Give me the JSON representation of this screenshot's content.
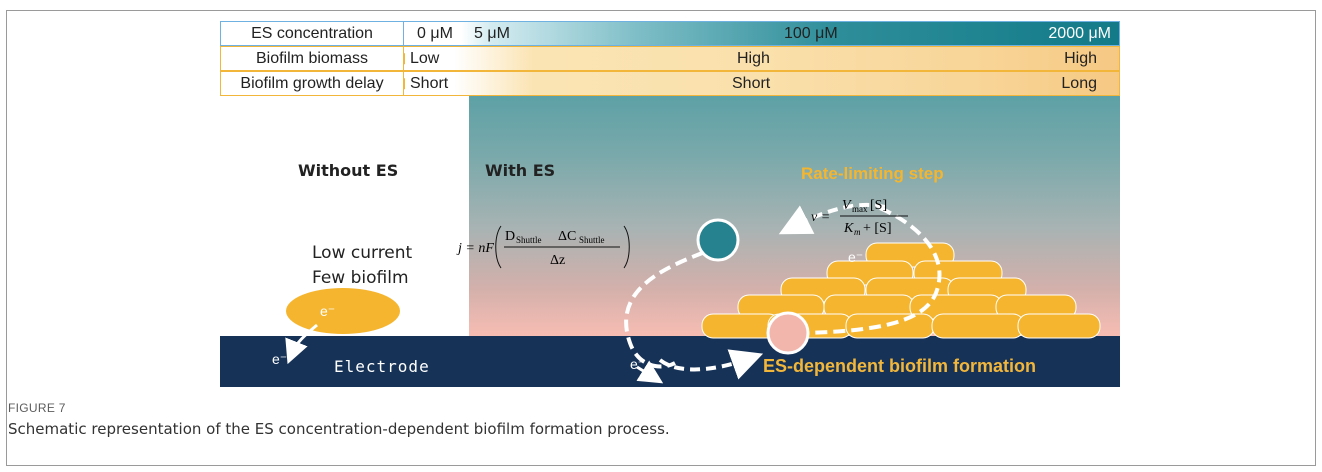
{
  "table": {
    "rows": [
      {
        "label": "ES concentration",
        "values": [
          "0 μM",
          "5 μM",
          "100 μM",
          "2000 μM"
        ]
      },
      {
        "label": "Biofilm biomass",
        "values": [
          "Low",
          "High",
          "High"
        ]
      },
      {
        "label": "Biofilm growth delay",
        "values": [
          "Short",
          "Short",
          "Long"
        ]
      }
    ]
  },
  "panels": {
    "without_es": "Without ES",
    "with_es": "With ES",
    "rate_limiting": "Rate-limiting step",
    "low_current": "Low current",
    "few_biofilm": "Few biofilm",
    "electrode": "Electrode",
    "es_formation": "ES-dependent biofilm formation",
    "electron": "e⁻"
  },
  "equations": {
    "flux": {
      "lhs": "j = nF",
      "D": "D",
      "D_sub": "Shuttle",
      "delta_c": "ΔC",
      "c_sub": "Shuttle",
      "denominator": "Δz"
    },
    "rate": {
      "lhs": "v =",
      "vmax": "V",
      "vmax_sub": "max",
      "s": "[S]",
      "km": "K",
      "km_sub": "m",
      "plus_s": "+ [S]"
    }
  },
  "caption": {
    "label": "FIGURE 7",
    "text": "Schematic representation of the ES concentration-dependent biofilm formation process."
  },
  "colors": {
    "cell": "#f5b52e",
    "cell_outline": "#ffffff",
    "shuttle_oxidized": "#26828e",
    "shuttle_reduced": "#f3b6ac",
    "electrode": "#163257",
    "accent": "#f2b63a"
  }
}
